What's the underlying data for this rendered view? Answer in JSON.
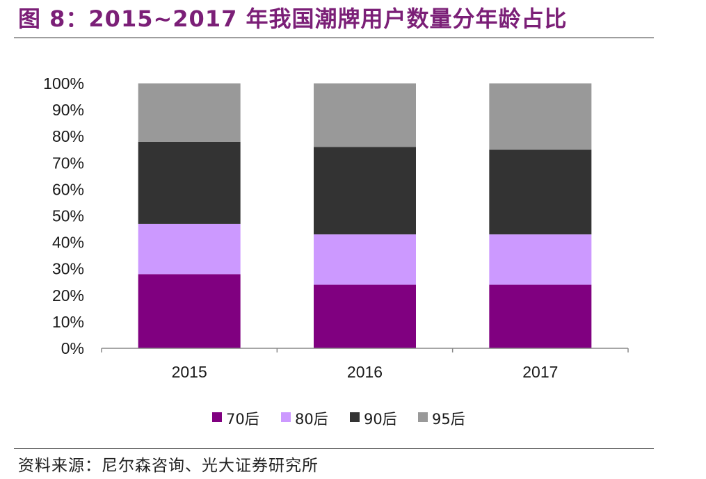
{
  "header": {
    "title": "图 8：2015~2017 年我国潮牌用户数量分年龄占比"
  },
  "footer": {
    "source": "资料来源：尼尔森咨询、光大证券研究所"
  },
  "chart_data": {
    "type": "bar",
    "stacked": true,
    "title": "",
    "xlabel": "",
    "ylabel": "",
    "ylim": [
      0,
      100
    ],
    "y_ticks": [
      "0%",
      "10%",
      "20%",
      "30%",
      "40%",
      "50%",
      "60%",
      "70%",
      "80%",
      "90%",
      "100%"
    ],
    "categories": [
      "2015",
      "2016",
      "2017"
    ],
    "series": [
      {
        "name": "70后",
        "color": "#800080",
        "values": [
          28,
          24,
          24
        ]
      },
      {
        "name": "80后",
        "color": "#cc99ff",
        "values": [
          19,
          19,
          19
        ]
      },
      {
        "name": "90后",
        "color": "#333333",
        "values": [
          31,
          33,
          32
        ]
      },
      {
        "name": "95后",
        "color": "#999999",
        "values": [
          22,
          24,
          25
        ]
      }
    ],
    "grid": false,
    "legend_position": "bottom"
  }
}
